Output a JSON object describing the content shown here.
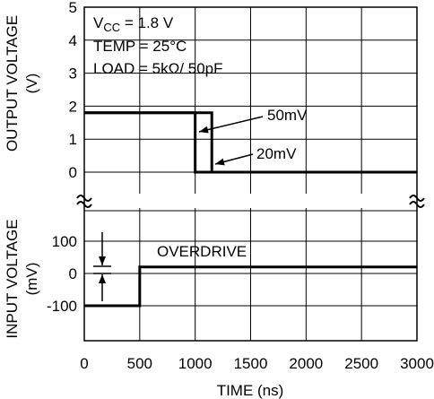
{
  "chart_data": [
    {
      "type": "line",
      "panel": "output",
      "ylabel_line1": "OUTPUT VOLTAGE",
      "ylabel_line2": "(V)",
      "ylim": [
        0,
        5
      ],
      "yticks": [
        0,
        1,
        2,
        3,
        4,
        5
      ],
      "xlim": [
        0,
        3000
      ],
      "grid": true,
      "conditions": {
        "vcc_prefix": "V",
        "vcc_sub": "CC",
        "vcc_value": " = 1.8 V",
        "temp": "TEMP = 25°C",
        "load": "LOAD = 5kΩ/ 50pF"
      },
      "series": [
        {
          "name": "50mV",
          "x": [
            0,
            1000,
            1000,
            3000
          ],
          "y": [
            1.8,
            1.8,
            0,
            0
          ]
        },
        {
          "name": "20mV",
          "x": [
            0,
            1150,
            1150,
            3000
          ],
          "y": [
            1.8,
            1.8,
            0,
            0
          ]
        }
      ]
    },
    {
      "type": "line",
      "panel": "input",
      "ylabel_line1": "INPUT VOLTAGE",
      "ylabel_line2": "(mV)",
      "ylim": [
        -150,
        150
      ],
      "yticks": [
        -100,
        0,
        100
      ],
      "xlim": [
        0,
        3000
      ],
      "xticks": [
        0,
        500,
        1000,
        1500,
        2000,
        2500,
        3000
      ],
      "xlabel": "TIME (ns)",
      "grid": true,
      "annotation": "OVERDRIVE",
      "series": [
        {
          "name": "",
          "x": [
            0,
            500,
            500,
            3000
          ],
          "y": [
            -100,
            -100,
            20,
            20
          ]
        }
      ]
    }
  ]
}
